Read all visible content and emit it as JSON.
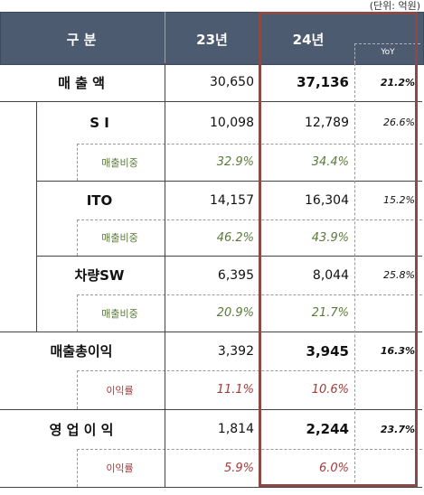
{
  "unit": "(단위: 억원)",
  "header": {
    "category": "구    분",
    "col23": "23년",
    "col24": "24년",
    "yoy": "YoY"
  },
  "rows": [
    {
      "label": "매 출 액",
      "v23": "30,650",
      "v24": "37,136",
      "yoy": "21.2%"
    },
    {
      "label": "S I",
      "v23": "10,098",
      "v24": "12,789",
      "yoy": "26.6%"
    },
    {
      "label": "매출비중",
      "v23": "32.9%",
      "v24": "34.4%"
    },
    {
      "label": "ITO",
      "v23": "14,157",
      "v24": "16,304",
      "yoy": "15.2%"
    },
    {
      "label": "매출비중",
      "v23": "46.2%",
      "v24": "43.9%"
    },
    {
      "label": "차량SW",
      "v23": "6,395",
      "v24": "8,044",
      "yoy": "25.8%"
    },
    {
      "label": "매출비중",
      "v23": "20.9%",
      "v24": "21.7%"
    },
    {
      "label": "매출총이익",
      "v23": "3,392",
      "v24": "3,945",
      "yoy": "16.3%"
    },
    {
      "label": "이익률",
      "v23": "11.1%",
      "v24": "10.6%"
    },
    {
      "label": "영 업 이 익",
      "v23": "1,814",
      "v24": "2,244",
      "yoy": "23.7%"
    },
    {
      "label": "이익률",
      "v23": "5.9%",
      "v24": "6.0%"
    }
  ]
}
